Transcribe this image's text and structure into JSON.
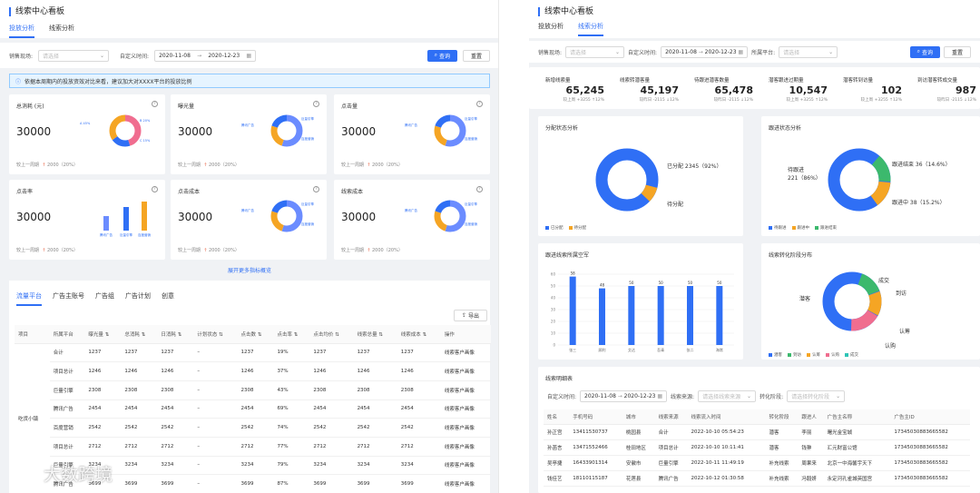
{
  "left": {
    "title": "线索中心看板",
    "tabs": [
      "投放分析",
      "线索分析"
    ],
    "filter": {
      "channel_label": "销售现场:",
      "channel_placeholder": "请选择",
      "time_label": "自定义时间:",
      "start": "2020-11-08",
      "end": "2020-12-23",
      "arrow": "→",
      "query": "查询",
      "reset": "重置"
    },
    "notice": "依据本周期内的投放资效对比来看，建议加大对XXXX平台的投放比例",
    "cards": [
      {
        "title": "总消耗 (元)",
        "value": "30000",
        "cmp_label": "较上一周期",
        "cmp_value": "2000（20%）",
        "chart": "donut",
        "legend": [
          "A 45%",
          "B 20%",
          "C 15%"
        ]
      },
      {
        "title": "曝光量",
        "value": "30000",
        "cmp_label": "较上一周期",
        "cmp_value": "2000（20%）",
        "chart": "donut",
        "legend": [
          "腾讯广告",
          "巨量引擎",
          "百度营销"
        ]
      },
      {
        "title": "点击量",
        "value": "30000",
        "cmp_label": "较上一周期",
        "cmp_value": "2000（20%）",
        "chart": "donut",
        "legend": [
          "腾讯广告",
          "巨量引擎",
          "百度营销"
        ]
      },
      {
        "title": "点击率",
        "value": "30000",
        "cmp_label": "较上一周期",
        "cmp_value": "2000（20%）",
        "chart": "bar",
        "legend": [
          "腾讯广告",
          "巨量引擎",
          "百度营销"
        ]
      },
      {
        "title": "点击成本",
        "value": "30000",
        "cmp_label": "较上一周期",
        "cmp_value": "2000（20%）",
        "chart": "donut",
        "legend": [
          "腾讯广告",
          "巨量引擎",
          "百度营销"
        ]
      },
      {
        "title": "线索成本",
        "value": "30000",
        "cmp_label": "较上一周期",
        "cmp_value": "2000（20%）",
        "chart": "donut",
        "legend": [
          "腾讯广告",
          "巨量引擎",
          "百度营销"
        ]
      }
    ],
    "expand": "展开更多指标概览",
    "subtabs": [
      "流量平台",
      "广告主账号",
      "广告组",
      "广告计划",
      "创意"
    ],
    "export": "导出",
    "columns": [
      "项目",
      "所属平台",
      "曝光量 ⇅",
      "总消耗 ⇅",
      "日消耗 ⇅",
      "计划状态 ⇅",
      "点击数 ⇅",
      "点击率 ⇅",
      "点击均价 ⇅",
      "线索总量 ⇅",
      "线索成本 ⇅",
      "操作"
    ],
    "group_label": "吃货小镇",
    "rows": [
      [
        "合计",
        "1237",
        "1237",
        "1237",
        "–",
        "1237",
        "19%",
        "1237",
        "1237",
        "1237",
        "线索客户画像"
      ],
      [
        "项目总计",
        "1246",
        "1246",
        "1246",
        "–",
        "1246",
        "37%",
        "1246",
        "1246",
        "1246",
        "线索客户画像"
      ],
      [
        "巨量引擎",
        "2308",
        "2308",
        "2308",
        "–",
        "2308",
        "43%",
        "2308",
        "2308",
        "2308",
        "线索客户画像"
      ],
      [
        "腾讯广告",
        "2454",
        "2454",
        "2454",
        "–",
        "2454",
        "69%",
        "2454",
        "2454",
        "2454",
        "线索客户画像"
      ],
      [
        "百度营销",
        "2542",
        "2542",
        "2542",
        "–",
        "2542",
        "74%",
        "2542",
        "2542",
        "2542",
        "线索客户画像"
      ],
      [
        "项目总计",
        "2712",
        "2712",
        "2712",
        "–",
        "2712",
        "77%",
        "2712",
        "2712",
        "2712",
        "线索客户画像"
      ],
      [
        "巨量引擎",
        "3234",
        "3234",
        "3234",
        "–",
        "3234",
        "79%",
        "3234",
        "3234",
        "3234",
        "线索客户画像"
      ],
      [
        "腾讯广告",
        "3699",
        "3699",
        "3699",
        "–",
        "3699",
        "87%",
        "3699",
        "3699",
        "3699",
        "线索客户画像"
      ]
    ]
  },
  "right": {
    "title": "线索中心看板",
    "tabs": [
      "投放分析",
      "线索分析"
    ],
    "filter": {
      "channel_label": "销售现场:",
      "channel_placeholder": "请选择",
      "time_label": "自定义时间:",
      "start": "2020-11-08",
      "end": "2020-12-23",
      "arrow": "→",
      "platform_label": "所属平台:",
      "platform_placeholder": "请选择",
      "query": "查询",
      "reset": "重置"
    },
    "kpis": [
      {
        "title": "新增线索量",
        "value": "65,245",
        "sub": "较上周 +3255 ↑12%"
      },
      {
        "title": "线索转潜客量",
        "value": "45,197",
        "sub": "较昨日 -2115 ↓12%"
      },
      {
        "title": "待跟进潜客数量",
        "value": "65,478",
        "sub": "较昨日 -2115 ↓12%"
      },
      {
        "title": "潜客跟进过期量",
        "value": "10,547",
        "sub": "较上周 +3255 ↑12%"
      },
      {
        "title": "潜客转到访量",
        "value": "102",
        "sub": "较上周 +3255 ↑12%"
      },
      {
        "title": "到访潜客转成交量",
        "value": "987",
        "sub": "较昨日 -2115 ↓12%"
      }
    ],
    "alloc": {
      "title": "分配状态分析",
      "label_a": "已分配 2345（92%）",
      "label_b": "待分配",
      "legend": [
        "已分配",
        "待分配"
      ]
    },
    "follow": {
      "title": "跟进状态分析",
      "label_a": "跟进结束 36（14.6%）",
      "label_b": "待跟进",
      "label_b2": "221（86%）",
      "label_c": "跟进中 38（15.2%）",
      "legend": [
        "待跟进",
        "跟进中",
        "跟进结束"
      ]
    },
    "bar_title": "跟进线索所属空军",
    "funnel": {
      "title": "线索转化阶段分布",
      "labels": [
        "成交",
        "到访",
        "认筹",
        "认购",
        "潜客"
      ],
      "legend": [
        "潜客",
        "到访",
        "认筹",
        "认购",
        "成交"
      ]
    },
    "detail": {
      "title": "线索明细表",
      "time_label": "自定义时间:",
      "start": "2020-11-08",
      "end": "2020-12-23",
      "arrow": "→",
      "source_label": "线索来源:",
      "source_placeholder": "请选择线索来源",
      "stage_label": "转化阶段:",
      "stage_placeholder": "请选择转化阶段",
      "columns": [
        "姓名",
        "手机号码",
        "城市",
        "线索来源",
        "线索流入时间",
        "转化阶段",
        "跟进人",
        "广告主名称",
        "广告主ID"
      ],
      "rows": [
        [
          "孙正宫",
          "13411530737",
          "桃园县",
          "合计",
          "2022-10-10 05:54:23",
          "潜客",
          "李丽",
          "曙光金宝城",
          "17345030883665582"
        ],
        [
          "孙菡言",
          "13471552466",
          "桂田地区",
          "项目总计",
          "2022-10-10 10:11:41",
          "潜客",
          "钱翀",
          "汇元财富公馆",
          "17345030883665582"
        ],
        [
          "吴亭捷",
          "16433901314",
          "安徽市",
          "巨量引擎",
          "2022-10-11 11:49:19",
          "补充线索",
          "周果来",
          "北京一中海馨宇天下",
          "17345030883665582"
        ],
        [
          "钱佳艺",
          "18110115187",
          "花莲县",
          "腾讯广告",
          "2022-10-12 01:30:58",
          "补充线索",
          "冯毅妍",
          "永定河孔雀城英国宫",
          "17345030883665582"
        ]
      ]
    }
  },
  "watermark": "大数跨境",
  "chart_data": {
    "type": "bar",
    "title": "跟进线索所属空军",
    "categories": [
      "张三",
      "顾利",
      "艾达",
      "吾青",
      "张二",
      "海常"
    ],
    "values": [
      58,
      48,
      50,
      50,
      50,
      50
    ],
    "ylim": [
      0,
      60
    ],
    "yticks": [
      0,
      10,
      20,
      30,
      40,
      50,
      60
    ],
    "color": "#2f6ff5"
  },
  "colors": {
    "primary": "#2f6ff5",
    "orange": "#f5a524",
    "pink": "#f06d8f",
    "green": "#3cb96d",
    "teal": "#2ec4b6"
  }
}
